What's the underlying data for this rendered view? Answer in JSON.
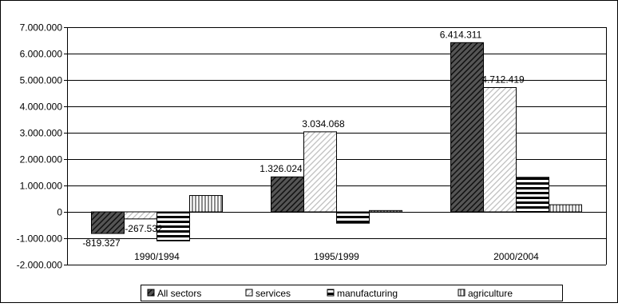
{
  "chart_data": {
    "type": "bar",
    "categories": [
      "1990/1994",
      "1995/1999",
      "2000/2004"
    ],
    "series": [
      {
        "name": "All sectors",
        "values": [
          -819327,
          1326024,
          6414311
        ]
      },
      {
        "name": "services",
        "values": [
          -267532,
          3034068,
          4712419
        ]
      },
      {
        "name": "manufacturing",
        "values": [
          -1100000,
          -430000,
          1310000
        ]
      },
      {
        "name": "agriculture",
        "values": [
          620000,
          50000,
          270000
        ]
      }
    ],
    "data_labels": [
      [
        "-819.327",
        "1.326.024",
        "6.414.311"
      ],
      [
        "-267.532",
        "3.034.068",
        "4.712.419"
      ],
      [
        "",
        "",
        ""
      ],
      [
        "",
        "",
        ""
      ]
    ],
    "y_ticks": [
      -2000000,
      -1000000,
      0,
      1000000,
      2000000,
      3000000,
      4000000,
      5000000,
      6000000,
      7000000
    ],
    "y_tick_labels": [
      "-2.000.000",
      "-1.000.000",
      "0",
      "1.000.000",
      "2.000.000",
      "3.000.000",
      "4.000.000",
      "5.000.000",
      "6.000.000",
      "7.000.000"
    ],
    "ylim": [
      -2000000,
      7000000
    ],
    "title": "",
    "xlabel": "",
    "ylabel": "",
    "grid": true,
    "legend_position": "bottom",
    "patterns": [
      "diagonal-dark",
      "diagonal-light",
      "horizontal",
      "vertical"
    ]
  }
}
